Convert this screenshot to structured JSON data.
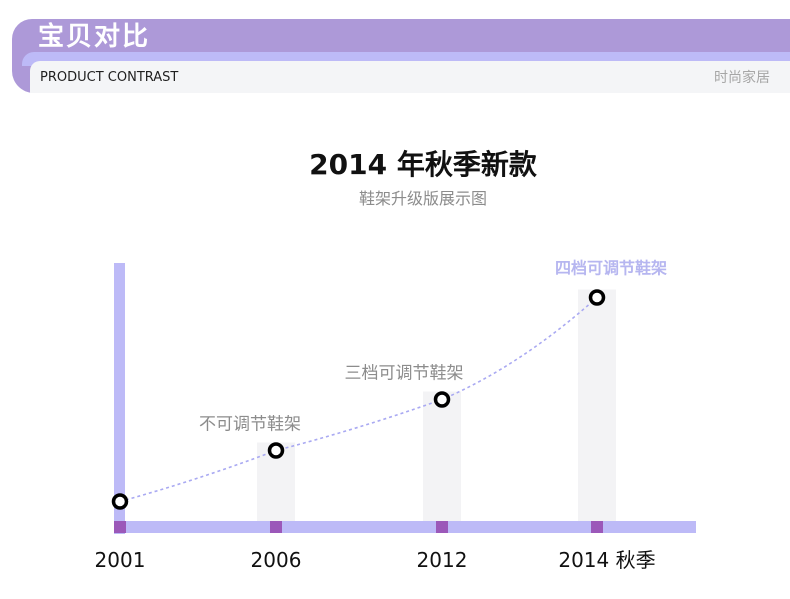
{
  "header": {
    "title": "宝贝对比",
    "subtitle": "PRODUCT CONTRAST",
    "tag": "时尚家居"
  },
  "colors": {
    "accent": "#bdbaf7",
    "banner": "#ad99d8",
    "tick": "#9b58b9",
    "column": "#f3f3f5",
    "point": "#000000",
    "label": "#8c8c8c",
    "highlight_label": "#b6b6f0"
  },
  "chart_data": {
    "type": "line",
    "title": "2014 年秋季新款",
    "subtitle": "鞋架升级版展示图",
    "categories": [
      "2001",
      "2006",
      "2012",
      "2014 秋季"
    ],
    "values": [
      1,
      2,
      3,
      5
    ],
    "annotations": [
      "",
      "不可调节鞋架",
      "三档可调节鞋架",
      "四档可调节鞋架"
    ],
    "ylim": [
      0,
      5.5
    ],
    "grid": false
  }
}
